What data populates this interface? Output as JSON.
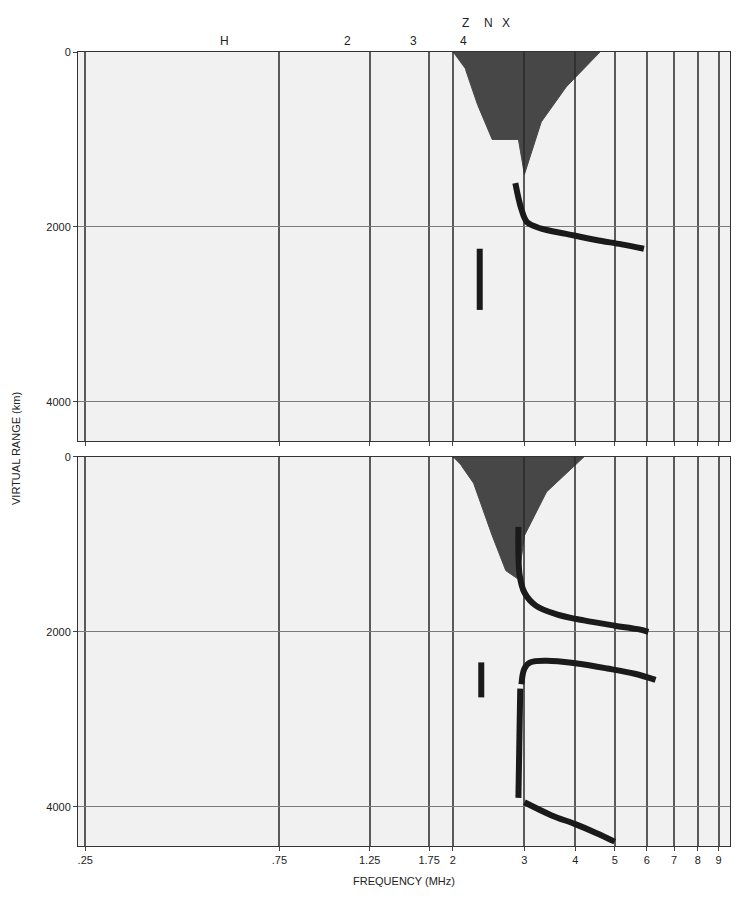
{
  "chart_data": [
    {
      "type": "line",
      "log": "x",
      "grid": true,
      "tick_labels": "y",
      "y_label": "VIRTUAL RANGE (km)",
      "xlim": [
        0.24,
        9.6
      ],
      "ylim": [
        4450,
        0
      ],
      "xticks": [
        {
          "value": 0.25,
          "label": ".25"
        },
        {
          "value": 0.75,
          "label": ".75"
        },
        {
          "value": 1.25,
          "label": "1.25"
        },
        {
          "value": 1.75,
          "label": "1.75"
        },
        2,
        3,
        4,
        5,
        6,
        7,
        8,
        9
      ],
      "yticks": [
        0,
        2000,
        4000
      ],
      "top_labels": [
        {
          "x": 0.55,
          "text": "H"
        },
        {
          "x": 1.1,
          "text": "2"
        },
        {
          "x": 1.6,
          "text": "3"
        },
        {
          "x": 2.12,
          "text": "4"
        }
      ],
      "upper_labels": [
        {
          "x": 2.15,
          "text": "Z"
        },
        {
          "x": 2.45,
          "text": "N"
        },
        {
          "x": 2.7,
          "text": "X"
        }
      ],
      "series": [
        {
          "type": "area",
          "color": "#2a2a2a",
          "x": [
            2.0,
            4.6,
            3.8,
            3.3,
            3.0,
            2.9,
            2.5,
            2.3,
            2.15
          ],
          "values": [
            0,
            0,
            400,
            800,
            1400,
            1000,
            1000,
            600,
            200
          ]
        },
        {
          "type": "line",
          "color": "#1a1a1a",
          "x": [
            2.85,
            2.95,
            3.05,
            3.3,
            3.8,
            4.5,
            5.2,
            5.9
          ],
          "values": [
            1500,
            1800,
            1950,
            2020,
            2080,
            2150,
            2200,
            2250
          ]
        },
        {
          "type": "line",
          "color": "#1a1a1a",
          "x": [
            2.33,
            2.33
          ],
          "values": [
            2250,
            2950
          ]
        }
      ]
    },
    {
      "type": "line",
      "log": "x",
      "grid": true,
      "x_label": "FREQUENCY (MHz)",
      "xlim": [
        0.24,
        9.6
      ],
      "ylim": [
        4450,
        0
      ],
      "xticks": [
        {
          "value": 0.25,
          "label": ".25"
        },
        {
          "value": 0.75,
          "label": ".75"
        },
        {
          "value": 1.25,
          "label": "1.25"
        },
        {
          "value": 1.75,
          "label": "1.75"
        },
        2,
        3,
        4,
        5,
        6,
        7,
        8,
        9
      ],
      "yticks": [
        0,
        2000,
        4000
      ],
      "series": [
        {
          "type": "area",
          "color": "#2a2a2a",
          "x": [
            2.0,
            4.2,
            3.4,
            3.0,
            2.9,
            2.7,
            2.5,
            2.25,
            2.1
          ],
          "values": [
            0,
            0,
            400,
            900,
            1400,
            1300,
            900,
            300,
            100
          ]
        },
        {
          "type": "line",
          "color": "#1a1a1a",
          "x": [
            2.9,
            2.92,
            3.0,
            3.2,
            3.6,
            4.2,
            5.0,
            5.7,
            6.05
          ],
          "values": [
            800,
            1350,
            1550,
            1700,
            1800,
            1870,
            1930,
            1970,
            2000
          ]
        },
        {
          "type": "line",
          "color": "#1a1a1a",
          "x": [
            2.95,
            3.0,
            3.1,
            3.4,
            4.0,
            4.8,
            5.6,
            6.3
          ],
          "values": [
            2600,
            2420,
            2350,
            2330,
            2360,
            2420,
            2480,
            2550
          ]
        },
        {
          "type": "line",
          "color": "#1a1a1a",
          "x": [
            2.93,
            2.9
          ],
          "values": [
            2650,
            3900
          ]
        },
        {
          "type": "line",
          "color": "#1a1a1a",
          "x": [
            3.0,
            3.5,
            4.0,
            4.5,
            5.0
          ],
          "values": [
            3950,
            4100,
            4200,
            4300,
            4400
          ]
        },
        {
          "type": "line",
          "color": "#1a1a1a",
          "x": [
            2.35,
            2.35
          ],
          "values": [
            2350,
            2750
          ]
        }
      ]
    }
  ]
}
